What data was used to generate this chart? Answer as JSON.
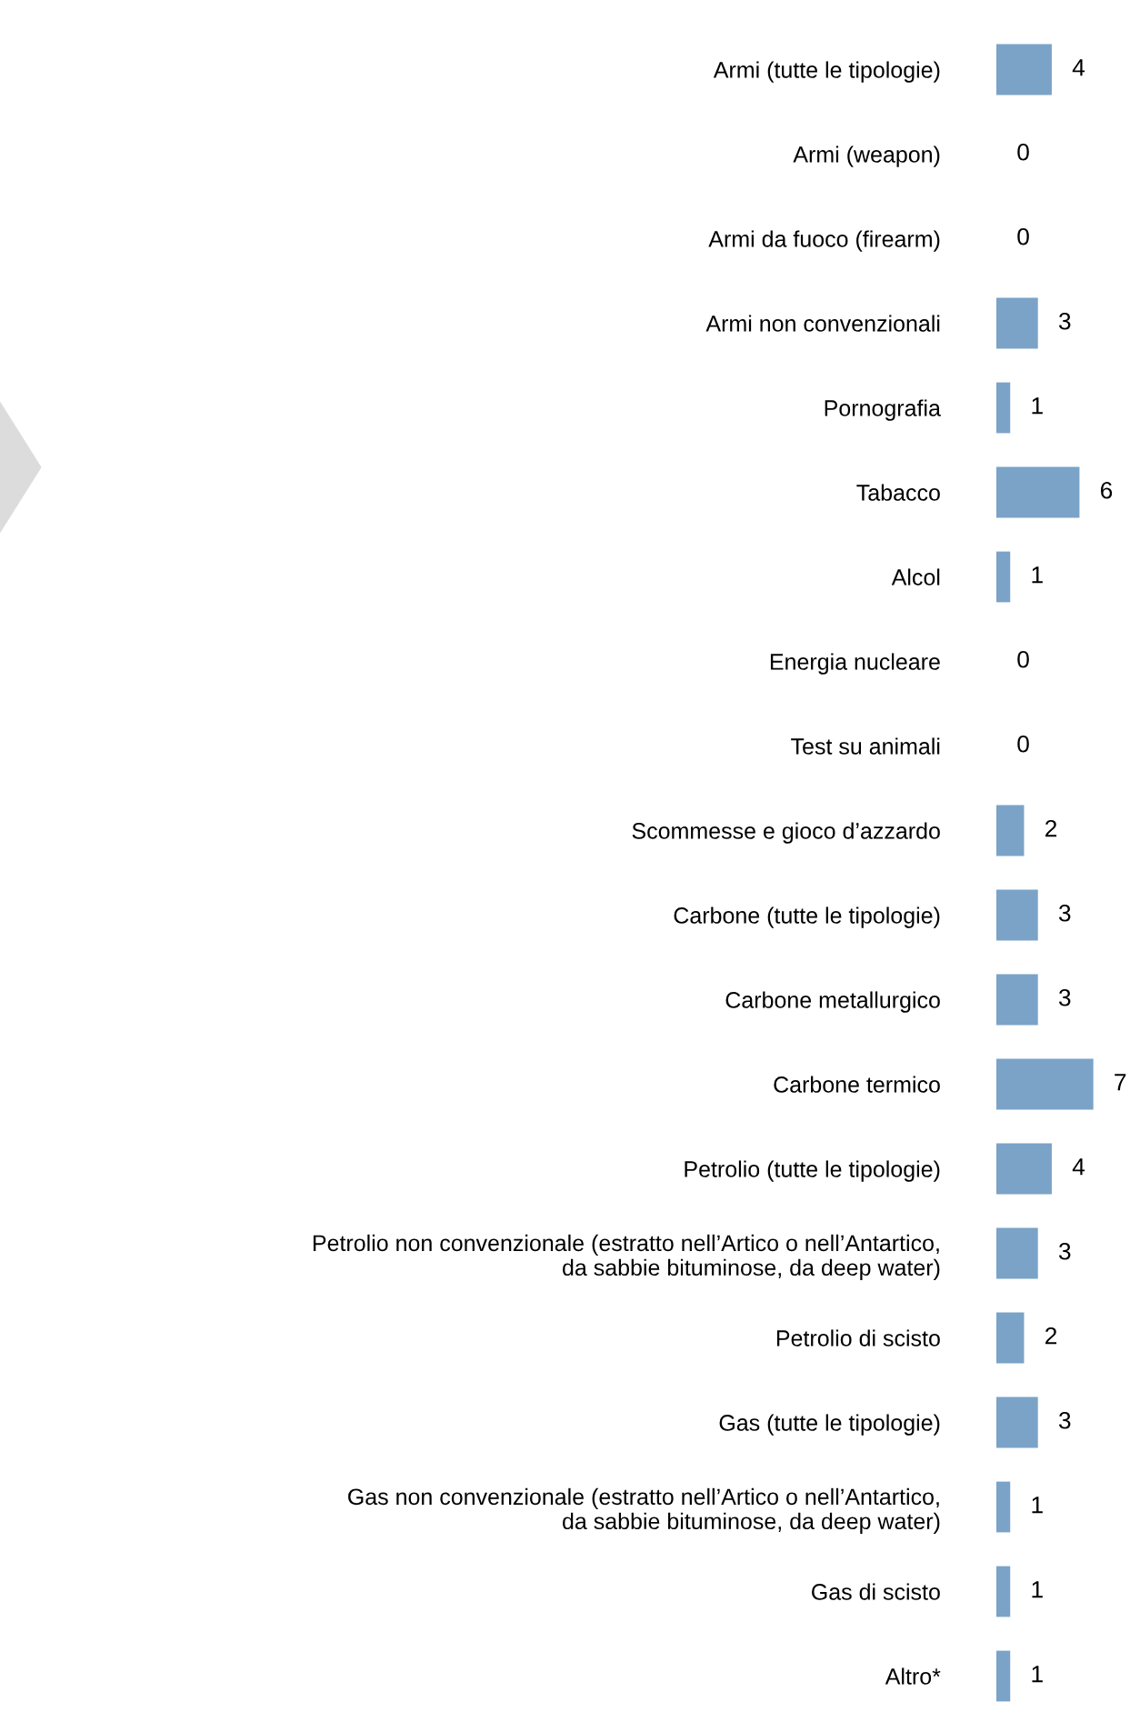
{
  "chart_data": {
    "type": "bar",
    "orientation": "horizontal",
    "data_labels": true,
    "grid": false,
    "legend": false,
    "tick_labels": "y",
    "color": "#7aa3c7",
    "categories": [
      "Armi (tutte le tipologie)",
      "Armi (weapon)",
      "Armi da fuoco (firearm)",
      "Armi non convenzionali",
      "Pornografia",
      "Tabacco",
      "Alcol",
      "Energia nucleare",
      "Test su animali",
      "Scommesse e gioco d’azzardo",
      "Carbone (tutte le tipologie)",
      "Carbone metallurgico",
      "Carbone termico",
      "Petrolio (tutte le tipologie)",
      "Petrolio non convenzionale (estratto nell’Artico o nell’Antartico,\nda sabbie bituminose, da deep water)",
      "Petrolio di scisto",
      "Gas (tutte le tipologie)",
      "Gas non convenzionale (estratto nell’Artico o nell’Antartico,\nda sabbie bituminose, da deep water)",
      "Gas di scisto",
      "Altro*"
    ],
    "values": [
      4,
      0,
      0,
      3,
      1,
      6,
      1,
      0,
      0,
      2,
      3,
      3,
      7,
      4,
      3,
      2,
      3,
      1,
      1,
      1
    ]
  }
}
